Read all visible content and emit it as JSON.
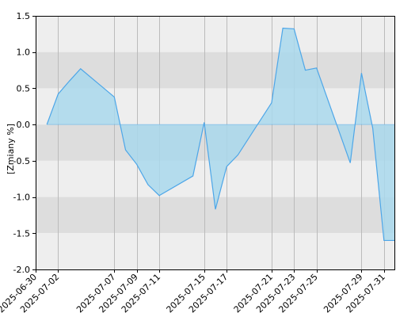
{
  "chart_data": {
    "type": "area",
    "ylabel": "[Zmiany %]",
    "ylim": [
      -2.0,
      1.5
    ],
    "yticks": [
      1.5,
      1.0,
      0.5,
      0.0,
      -0.5,
      -1.0,
      -1.5,
      -2.0
    ],
    "ytick_labels": [
      "1.5",
      "1.0",
      "0.5",
      "0.0",
      "-0.5",
      "-1.0",
      "-1.5",
      "-2.0"
    ],
    "xlim": [
      "2025-06-30",
      "2025-08-01"
    ],
    "xticks": [
      "2025-06-30",
      "2025-07-02",
      "2025-07-07",
      "2025-07-09",
      "2025-07-11",
      "2025-07-15",
      "2025-07-17",
      "2025-07-21",
      "2025-07-23",
      "2025-07-25",
      "2025-07-29",
      "2025-07-31"
    ],
    "grid": true,
    "x": [
      "2025-07-01",
      "2025-07-02",
      "2025-07-03",
      "2025-07-04",
      "2025-07-07",
      "2025-07-08",
      "2025-07-09",
      "2025-07-10",
      "2025-07-11",
      "2025-07-14",
      "2025-07-15",
      "2025-07-16",
      "2025-07-17",
      "2025-07-18",
      "2025-07-21",
      "2025-07-22",
      "2025-07-23",
      "2025-07-24",
      "2025-07-25",
      "2025-07-28",
      "2025-07-29",
      "2025-07-30",
      "2025-07-31",
      "2025-08-01"
    ],
    "series": [
      {
        "values": [
          0.0,
          0.42,
          0.6,
          0.77,
          0.38,
          -0.35,
          -0.55,
          -0.83,
          -0.98,
          -0.71,
          0.03,
          -1.17,
          -0.58,
          -0.42,
          0.3,
          1.33,
          1.32,
          0.75,
          0.78,
          -0.53,
          0.71,
          -0.05,
          -1.6,
          -1.6
        ]
      }
    ],
    "colors": {
      "line": "#4da6e8",
      "fill": "#a9d8ec",
      "band_light": "#eeeeee",
      "band_dark": "#dddddd",
      "grid": "#bbbbbb",
      "axis": "#000000"
    }
  }
}
